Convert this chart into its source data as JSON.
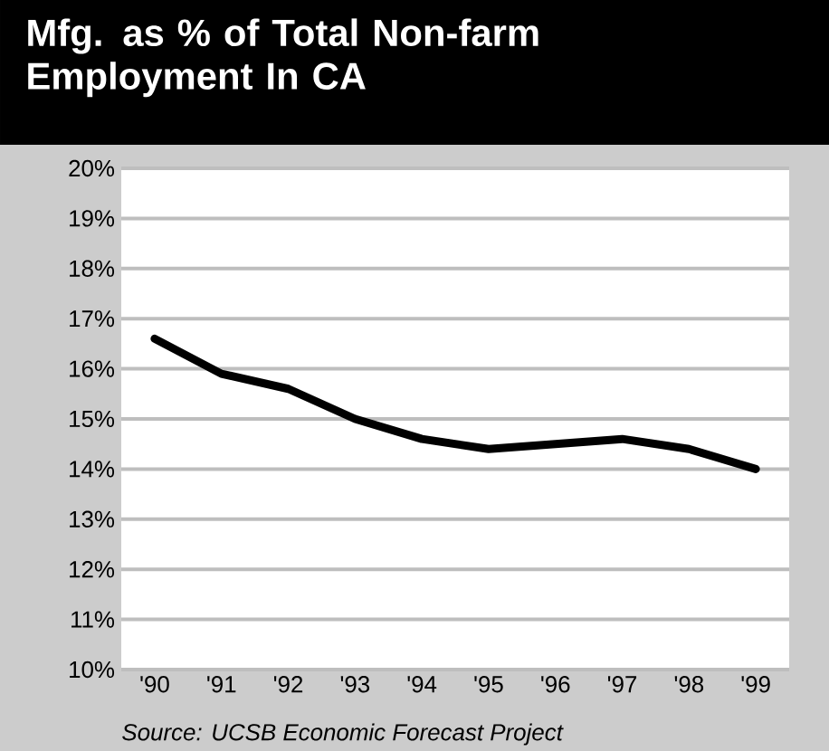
{
  "chart_data": {
    "type": "line",
    "title": "Mfg. as % of Total Non-farm Employment In CA",
    "categories": [
      "'90",
      "'91",
      "'92",
      "'93",
      "'94",
      "'95",
      "'96",
      "'97",
      "'98",
      "'99"
    ],
    "series": [
      {
        "color": "#000000",
        "values": [
          16.6,
          15.9,
          15.6,
          15.0,
          14.6,
          14.4,
          14.5,
          14.6,
          14.4,
          14.0
        ]
      }
    ],
    "ylim": [
      10,
      20
    ],
    "yticks": [
      {
        "value": 10,
        "label": "10%"
      },
      {
        "value": 11,
        "label": "11%"
      },
      {
        "value": 12,
        "label": "12%"
      },
      {
        "value": 13,
        "label": "13%"
      },
      {
        "value": 14,
        "label": "14%"
      },
      {
        "value": 15,
        "label": "15%"
      },
      {
        "value": 16,
        "label": "16%"
      },
      {
        "value": 17,
        "label": "17%"
      },
      {
        "value": 18,
        "label": "18%"
      },
      {
        "value": 19,
        "label": "19%"
      },
      {
        "value": 20,
        "label": "20%"
      }
    ],
    "grid": "y",
    "marker": "none",
    "line_style": "solid",
    "annotations": [
      "Source: UCSB Economic Forecast Project"
    ]
  }
}
